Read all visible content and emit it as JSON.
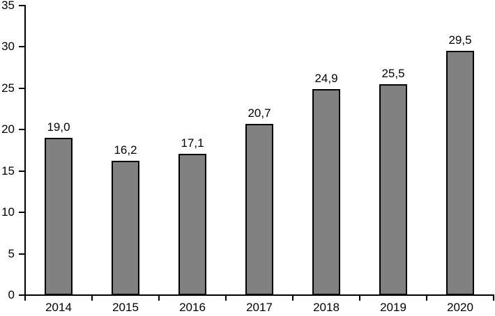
{
  "chart_data": {
    "type": "bar",
    "title": "",
    "xlabel": "",
    "ylabel": "",
    "categories": [
      "2014",
      "2015",
      "2016",
      "2017",
      "2018",
      "2019",
      "2020"
    ],
    "values": [
      19.0,
      16.2,
      17.1,
      20.7,
      24.9,
      25.5,
      29.5
    ],
    "value_labels": [
      "19,0",
      "16,2",
      "17,1",
      "20,7",
      "24,9",
      "25,5",
      "29,5"
    ],
    "ylim": [
      0,
      35
    ],
    "yticks": [
      0,
      5,
      10,
      15,
      20,
      25,
      30,
      35
    ],
    "grid": false,
    "legend": false,
    "decimal_separator": ",",
    "colors": {
      "bar_fill": "#808080",
      "bar_border": "#000000",
      "axis": "#000000",
      "text": "#000000",
      "background": "#ffffff"
    }
  }
}
